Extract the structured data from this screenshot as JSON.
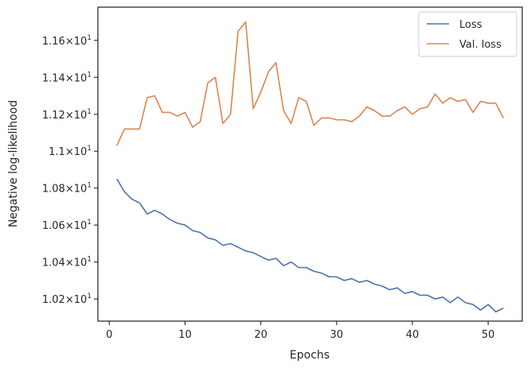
{
  "chart_data": {
    "type": "line",
    "xlabel": "Epochs",
    "ylabel": "Negative log-likelihood",
    "xlim": [
      -1.5,
      54.5
    ],
    "ylim": [
      10.08,
      11.78
    ],
    "xticks": [
      0,
      10,
      20,
      30,
      40,
      50
    ],
    "yticks": [
      {
        "value": 10.2,
        "mantissa": "1.02"
      },
      {
        "value": 10.4,
        "mantissa": "1.04"
      },
      {
        "value": 10.6,
        "mantissa": "1.06"
      },
      {
        "value": 10.8,
        "mantissa": "1.08"
      },
      {
        "value": 11.0,
        "mantissa": "1.1"
      },
      {
        "value": 11.2,
        "mantissa": "1.12"
      },
      {
        "value": 11.4,
        "mantissa": "1.14"
      },
      {
        "value": 11.6,
        "mantissa": "1.16"
      }
    ],
    "ytick_suffix": "×10",
    "ytick_exponent": "1",
    "grid": false,
    "legend_position": "top-right",
    "x": [
      1,
      2,
      3,
      4,
      5,
      6,
      7,
      8,
      9,
      10,
      11,
      12,
      13,
      14,
      15,
      16,
      17,
      18,
      19,
      20,
      21,
      22,
      23,
      24,
      25,
      26,
      27,
      28,
      29,
      30,
      31,
      32,
      33,
      34,
      35,
      36,
      37,
      38,
      39,
      40,
      41,
      42,
      43,
      44,
      45,
      46,
      47,
      48,
      49,
      50,
      51,
      52
    ],
    "series": [
      {
        "name": "Loss",
        "color": "#4c72b0",
        "values": [
          10.85,
          10.78,
          10.74,
          10.72,
          10.66,
          10.68,
          10.66,
          10.63,
          10.61,
          10.6,
          10.57,
          10.56,
          10.53,
          10.52,
          10.49,
          10.5,
          10.48,
          10.46,
          10.45,
          10.43,
          10.41,
          10.42,
          10.38,
          10.4,
          10.37,
          10.37,
          10.35,
          10.34,
          10.32,
          10.32,
          10.3,
          10.31,
          10.29,
          10.3,
          10.28,
          10.27,
          10.25,
          10.26,
          10.23,
          10.24,
          10.22,
          10.22,
          10.2,
          10.21,
          10.18,
          10.21,
          10.18,
          10.17,
          10.14,
          10.17,
          10.13,
          10.15
        ]
      },
      {
        "name": "Val. loss",
        "color": "#dd8452",
        "values": [
          11.03,
          11.12,
          11.12,
          11.12,
          11.29,
          11.3,
          11.21,
          11.21,
          11.19,
          11.21,
          11.13,
          11.16,
          11.37,
          11.4,
          11.15,
          11.2,
          11.65,
          11.7,
          11.23,
          11.32,
          11.43,
          11.48,
          11.22,
          11.15,
          11.29,
          11.27,
          11.14,
          11.18,
          11.18,
          11.17,
          11.17,
          11.16,
          11.19,
          11.24,
          11.22,
          11.19,
          11.19,
          11.22,
          11.24,
          11.2,
          11.23,
          11.24,
          11.31,
          11.26,
          11.29,
          11.27,
          11.28,
          11.21,
          11.27,
          11.26,
          11.26,
          11.18
        ]
      }
    ]
  }
}
